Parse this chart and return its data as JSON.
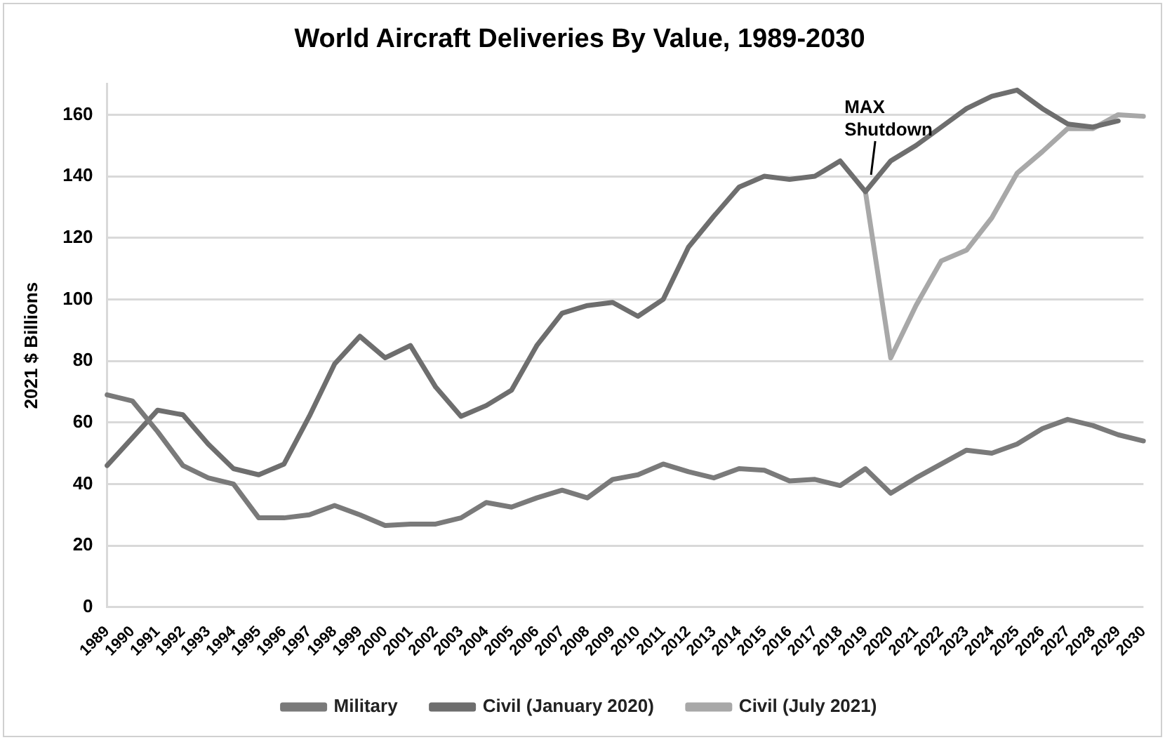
{
  "chart_data": {
    "type": "line",
    "title": "World Aircraft Deliveries By Value, 1989-2030",
    "ylabel": "2021 $ Billions",
    "categories": [
      "1989",
      "1990",
      "1991",
      "1992",
      "1993",
      "1994",
      "1995",
      "1996",
      "1997",
      "1998",
      "1999",
      "2000",
      "2001",
      "2002",
      "2003",
      "2004",
      "2005",
      "2006",
      "2007",
      "2008",
      "2009",
      "2010",
      "2011",
      "2012",
      "2013",
      "2014",
      "2015",
      "2016",
      "2017",
      "2018",
      "2019",
      "2020",
      "2021",
      "2022",
      "2023",
      "2024",
      "2025",
      "2026",
      "2027",
      "2028",
      "2029",
      "2030"
    ],
    "series": [
      {
        "name": "Military",
        "color": "#7a7a7a",
        "values": [
          69,
          67,
          57,
          46,
          42,
          40,
          29,
          29,
          30,
          33,
          30,
          26.5,
          27,
          27,
          29,
          34,
          32.5,
          35.5,
          38,
          35.5,
          41.5,
          43,
          46.5,
          44,
          42,
          45,
          44.5,
          41,
          41.5,
          39.5,
          45,
          37,
          42,
          46.5,
          51,
          50,
          53,
          58,
          61,
          59,
          56,
          54
        ]
      },
      {
        "name": "Civil (January 2020)",
        "color": "#6e6e6e",
        "values": [
          46,
          55,
          64,
          62.5,
          53,
          45,
          43,
          46.5,
          62,
          79,
          88,
          81,
          85,
          71.5,
          62,
          65.5,
          70.5,
          85,
          95.5,
          98,
          99,
          94.5,
          100,
          117,
          127,
          136.5,
          140,
          139,
          140,
          145,
          135,
          145,
          150,
          156,
          162,
          166,
          168,
          162,
          157,
          156,
          158,
          null
        ]
      },
      {
        "name": "Civil (July 2021)",
        "color": "#a8a8a8",
        "values": [
          null,
          null,
          null,
          null,
          null,
          null,
          null,
          null,
          null,
          null,
          null,
          null,
          null,
          null,
          null,
          null,
          null,
          null,
          null,
          null,
          null,
          null,
          null,
          null,
          null,
          null,
          null,
          null,
          null,
          null,
          135,
          81,
          98,
          112.5,
          116,
          126.5,
          141,
          148,
          155.5,
          155.5,
          160,
          159.5
        ]
      }
    ],
    "annotations": [
      {
        "text": "MAX Shutdown",
        "x": "2019",
        "y": 135
      }
    ],
    "ylim": [
      0,
      170
    ],
    "yticks": [
      0,
      20,
      40,
      60,
      80,
      100,
      120,
      140,
      160
    ],
    "grid": "y",
    "legend": "bottom",
    "marker": "none",
    "line_style": "solid"
  }
}
